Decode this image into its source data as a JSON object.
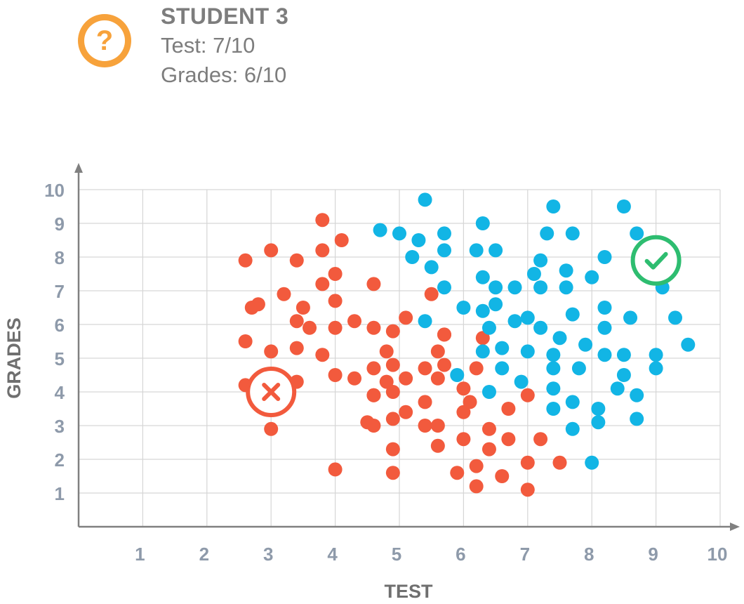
{
  "student": {
    "icon": "question-icon",
    "icon_glyph": "?",
    "title": "STUDENT 3",
    "test": "Test: 7/10",
    "grades": "Grades: 6/10",
    "color": "#f7a23b"
  },
  "chart_data": {
    "type": "scatter",
    "title": "",
    "xlabel": "TEST",
    "ylabel": "GRADES",
    "xlim": [
      0,
      10
    ],
    "ylim": [
      0,
      10
    ],
    "xticks": [
      1,
      2,
      3,
      4,
      5,
      6,
      7,
      8,
      9,
      10
    ],
    "yticks": [
      1,
      2,
      3,
      4,
      5,
      6,
      7,
      8,
      9,
      10
    ],
    "grid": true,
    "colors": {
      "rejected": "#f25a3d",
      "accepted": "#12b5e5",
      "check": "#2ebd70",
      "cross": "#f25a3d",
      "grid": "#d6d6d6",
      "axis": "#808080"
    },
    "markers": [
      {
        "name": "cross-marker-icon",
        "x": 3.0,
        "y": 4.0,
        "color": "#f25a3d"
      },
      {
        "name": "check-marker-icon",
        "x": 9.0,
        "y": 7.9,
        "color": "#2ebd70"
      }
    ],
    "series": [
      {
        "color": "#f25a3d",
        "points": [
          [
            2.6,
            7.9
          ],
          [
            3.0,
            8.2
          ],
          [
            3.4,
            7.9
          ],
          [
            3.8,
            8.2
          ],
          [
            3.8,
            9.1
          ],
          [
            4.1,
            8.5
          ],
          [
            4.0,
            7.5
          ],
          [
            3.8,
            7.2
          ],
          [
            3.2,
            6.9
          ],
          [
            2.7,
            6.5
          ],
          [
            2.8,
            6.6
          ],
          [
            3.5,
            6.5
          ],
          [
            3.4,
            6.1
          ],
          [
            3.6,
            5.9
          ],
          [
            4.0,
            6.7
          ],
          [
            4.0,
            5.9
          ],
          [
            4.3,
            6.1
          ],
          [
            4.6,
            7.2
          ],
          [
            5.5,
            6.9
          ],
          [
            2.6,
            5.5
          ],
          [
            3.0,
            5.2
          ],
          [
            3.4,
            5.3
          ],
          [
            3.8,
            5.1
          ],
          [
            2.6,
            4.2
          ],
          [
            3.4,
            4.3
          ],
          [
            4.0,
            4.5
          ],
          [
            4.3,
            4.4
          ],
          [
            4.6,
            5.9
          ],
          [
            4.9,
            5.8
          ],
          [
            5.1,
            6.2
          ],
          [
            4.8,
            5.2
          ],
          [
            4.6,
            4.7
          ],
          [
            4.9,
            4.8
          ],
          [
            5.1,
            4.4
          ],
          [
            5.4,
            4.7
          ],
          [
            5.6,
            5.2
          ],
          [
            5.7,
            5.7
          ],
          [
            5.7,
            5.7
          ],
          [
            5.7,
            4.8
          ],
          [
            5.6,
            4.4
          ],
          [
            4.8,
            4.3
          ],
          [
            4.6,
            3.9
          ],
          [
            4.6,
            3.9
          ],
          [
            4.9,
            4.0
          ],
          [
            5.4,
            3.7
          ],
          [
            5.1,
            3.4
          ],
          [
            4.9,
            3.2
          ],
          [
            4.5,
            3.1
          ],
          [
            4.6,
            3.0
          ],
          [
            5.4,
            3.0
          ],
          [
            5.6,
            3.0
          ],
          [
            6.2,
            4.7
          ],
          [
            6.0,
            4.1
          ],
          [
            6.1,
            3.7
          ],
          [
            6.0,
            3.4
          ],
          [
            6.3,
            5.6
          ],
          [
            6.7,
            3.5
          ],
          [
            7.0,
            3.9
          ],
          [
            6.4,
            2.9
          ],
          [
            6.0,
            2.6
          ],
          [
            5.6,
            2.4
          ],
          [
            4.9,
            2.3
          ],
          [
            6.4,
            2.3
          ],
          [
            6.7,
            2.6
          ],
          [
            7.2,
            2.6
          ],
          [
            7.0,
            1.9
          ],
          [
            7.5,
            1.9
          ],
          [
            6.2,
            1.8
          ],
          [
            5.9,
            1.6
          ],
          [
            6.6,
            1.5
          ],
          [
            6.2,
            1.2
          ],
          [
            7.0,
            1.1
          ],
          [
            4.9,
            1.6
          ],
          [
            4.0,
            1.7
          ],
          [
            3.0,
            2.9
          ]
        ]
      },
      {
        "color": "#12b5e5",
        "points": [
          [
            5.4,
            9.7
          ],
          [
            7.4,
            9.5
          ],
          [
            8.5,
            9.5
          ],
          [
            4.7,
            8.8
          ],
          [
            5.0,
            8.7
          ],
          [
            5.3,
            8.5
          ],
          [
            5.7,
            8.7
          ],
          [
            6.3,
            9.0
          ],
          [
            7.3,
            8.7
          ],
          [
            7.7,
            8.7
          ],
          [
            8.7,
            8.7
          ],
          [
            5.7,
            8.2
          ],
          [
            6.2,
            8.2
          ],
          [
            6.5,
            8.2
          ],
          [
            5.2,
            8.0
          ],
          [
            7.2,
            7.9
          ],
          [
            8.2,
            8.0
          ],
          [
            5.5,
            7.7
          ],
          [
            7.1,
            7.5
          ],
          [
            7.6,
            7.6
          ],
          [
            8.0,
            7.4
          ],
          [
            6.3,
            7.4
          ],
          [
            5.7,
            7.1
          ],
          [
            6.5,
            7.1
          ],
          [
            6.8,
            7.1
          ],
          [
            7.2,
            7.1
          ],
          [
            7.6,
            7.1
          ],
          [
            9.1,
            7.1
          ],
          [
            6.0,
            6.5
          ],
          [
            6.3,
            6.4
          ],
          [
            6.5,
            6.6
          ],
          [
            7.0,
            6.2
          ],
          [
            7.7,
            6.3
          ],
          [
            8.2,
            6.5
          ],
          [
            8.6,
            6.2
          ],
          [
            9.3,
            6.2
          ],
          [
            5.4,
            6.1
          ],
          [
            6.4,
            5.9
          ],
          [
            6.8,
            6.1
          ],
          [
            7.2,
            5.9
          ],
          [
            8.2,
            5.9
          ],
          [
            7.5,
            5.6
          ],
          [
            7.9,
            5.4
          ],
          [
            9.5,
            5.4
          ],
          [
            6.3,
            5.2
          ],
          [
            6.6,
            5.3
          ],
          [
            7.0,
            5.2
          ],
          [
            7.4,
            5.1
          ],
          [
            8.2,
            5.1
          ],
          [
            8.5,
            5.1
          ],
          [
            9.0,
            5.1
          ],
          [
            5.9,
            4.5
          ],
          [
            6.6,
            4.7
          ],
          [
            7.4,
            4.7
          ],
          [
            7.8,
            4.7
          ],
          [
            8.5,
            4.5
          ],
          [
            9.0,
            4.7
          ],
          [
            6.9,
            4.3
          ],
          [
            7.4,
            4.1
          ],
          [
            8.4,
            4.1
          ],
          [
            6.4,
            4.0
          ],
          [
            8.7,
            3.9
          ],
          [
            7.4,
            3.5
          ],
          [
            7.7,
            3.7
          ],
          [
            8.1,
            3.5
          ],
          [
            8.7,
            3.2
          ],
          [
            7.7,
            2.9
          ],
          [
            8.1,
            3.1
          ],
          [
            8.0,
            1.9
          ]
        ]
      }
    ]
  }
}
